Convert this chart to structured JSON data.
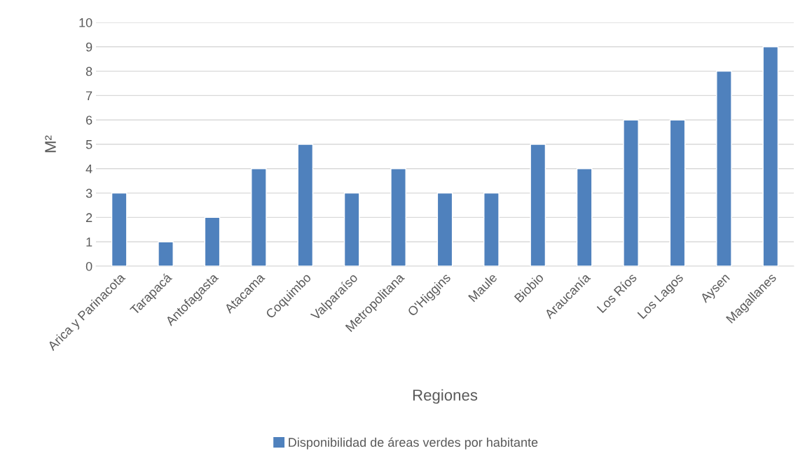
{
  "chart_data": {
    "type": "bar",
    "ylabel": "M²",
    "xlabel": "Regiones",
    "categories": [
      "Arica y Parinacota",
      "Tarapacá",
      "Antofagasta",
      "Atacama",
      "Coquimbo",
      "Valparaíso",
      "Metropolitana",
      "O'Higgins",
      "Maule",
      "Biobio",
      "Araucanía",
      "Los Ríos",
      "Los Lagos",
      "Aysen",
      "Magallanes"
    ],
    "series": [
      {
        "name": "Disponibilidad de áreas verdes por habitante",
        "color": "#4f81bd",
        "values": [
          3,
          1,
          2,
          4,
          5,
          3,
          4,
          3,
          3,
          5,
          4,
          6,
          6,
          8,
          9
        ]
      }
    ],
    "ylim": [
      0,
      10
    ],
    "yticks": [
      0,
      1,
      2,
      3,
      4,
      5,
      6,
      7,
      8,
      9,
      10
    ],
    "grid": "y",
    "legend": "bottom"
  }
}
